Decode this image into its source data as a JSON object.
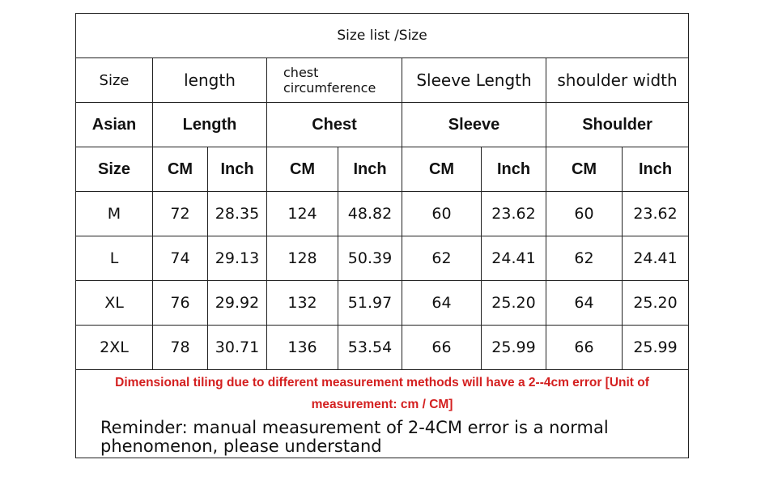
{
  "title": "Size list /Size",
  "label_row": [
    "Size",
    "length",
    "chest circumference",
    "Sleeve Length",
    "shoulder width"
  ],
  "group_row": [
    "Asian",
    "Length",
    "Chest",
    "Sleeve",
    "Shoulder"
  ],
  "unit_row": [
    "Size",
    "CM",
    "Inch",
    "CM",
    "Inch",
    "CM",
    "Inch",
    "CM",
    "Inch"
  ],
  "rows": [
    [
      "M",
      "72",
      "28.35",
      "124",
      "48.82",
      "60",
      "23.62",
      "60",
      "23.62"
    ],
    [
      "L",
      "74",
      "29.13",
      "128",
      "50.39",
      "62",
      "24.41",
      "62",
      "24.41"
    ],
    [
      "XL",
      "76",
      "29.92",
      "132",
      "51.97",
      "64",
      "25.20",
      "64",
      "25.20"
    ],
    [
      "2XL",
      "78",
      "30.71",
      "136",
      "53.54",
      "66",
      "25.99",
      "66",
      "25.99"
    ]
  ],
  "warning": "Dimensional tiling due to different measurement methods will have a 2--4cm error [Unit of measurement: cm / CM]",
  "reminder": "Reminder: manual measurement of 2-4CM error is a normal phenomenon, please understand",
  "colors": {
    "warning": "#d42020",
    "border": "#222222"
  }
}
